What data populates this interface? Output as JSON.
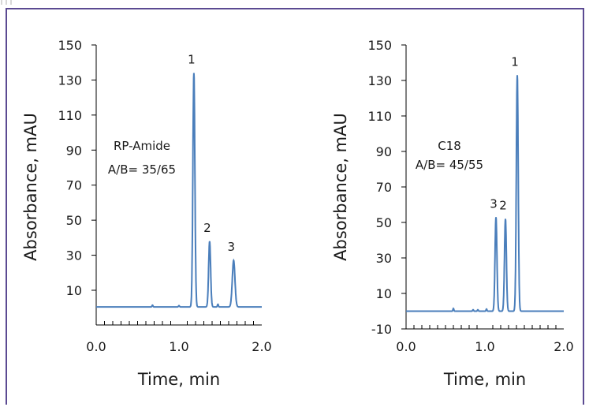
{
  "frame_color": "#5b4a92",
  "line_color": "#4a7ebb",
  "chart_data": [
    {
      "type": "line",
      "xlabel": "Time, min",
      "ylabel": "Absorbance, mAU",
      "xlim": [
        0,
        2.0
      ],
      "ylim": [
        0,
        150
      ],
      "yticks": [
        10,
        30,
        50,
        70,
        90,
        110,
        130,
        150
      ],
      "xticks": [
        0.0,
        1.0,
        2.0
      ],
      "xtick_labels": [
        "0.0",
        "1.0",
        "2.0"
      ],
      "annotation": [
        "RP-Amide",
        "A/B= 35/65"
      ],
      "baseline": 0.5,
      "peaks": [
        {
          "label": "1",
          "x": 1.18,
          "y": 134
        },
        {
          "label": "2",
          "x": 1.37,
          "y": 38
        },
        {
          "label": "3",
          "x": 1.66,
          "y": 27
        }
      ],
      "minor": [
        {
          "x": 0.68,
          "y": 1.5
        },
        {
          "x": 1.0,
          "y": 1.2
        },
        {
          "x": 1.47,
          "y": 2.0
        }
      ]
    },
    {
      "type": "line",
      "xlabel": "Time, min",
      "ylabel": "Absorbance, mAU",
      "xlim": [
        0,
        2.0
      ],
      "ylim": [
        -10,
        150
      ],
      "yticks": [
        -10,
        10,
        30,
        50,
        70,
        90,
        110,
        130,
        150
      ],
      "xticks": [
        0.0,
        1.0,
        2.0
      ],
      "xtick_labels": [
        "0.0",
        "1.0",
        "2.0"
      ],
      "annotation": [
        "C18",
        "A/B= 45/55"
      ],
      "baseline": 0,
      "peaks": [
        {
          "label": "3",
          "x": 1.14,
          "y": 53
        },
        {
          "label": "2",
          "x": 1.26,
          "y": 52
        },
        {
          "label": "1",
          "x": 1.41,
          "y": 133
        }
      ],
      "minor": [
        {
          "x": 0.6,
          "y": 1.5
        },
        {
          "x": 0.85,
          "y": 0.8
        },
        {
          "x": 0.91,
          "y": 0.8
        },
        {
          "x": 1.02,
          "y": 1.2
        }
      ]
    }
  ]
}
